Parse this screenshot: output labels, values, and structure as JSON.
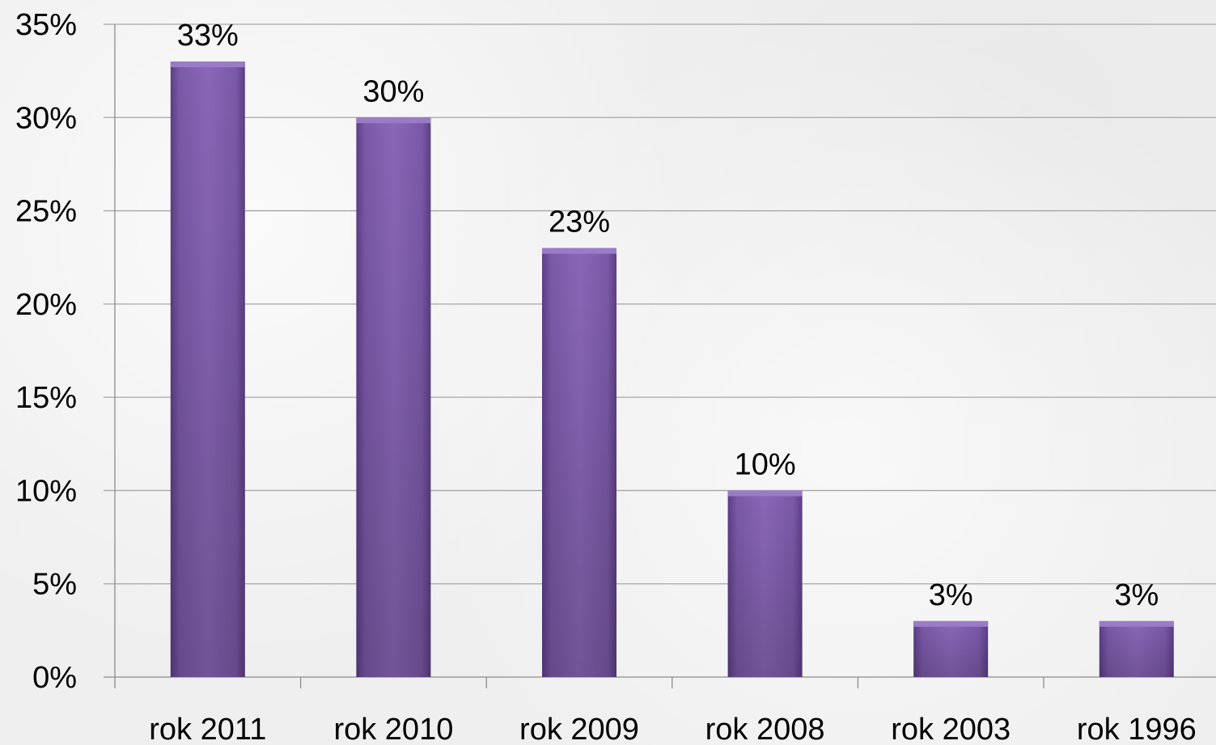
{
  "chart_data": {
    "type": "bar",
    "title": "",
    "xlabel": "",
    "ylabel": "",
    "categories": [
      "rok 2011",
      "rok 2010",
      "rok 2009",
      "rok 2008",
      "rok 2003",
      "rok 1996"
    ],
    "values": [
      33,
      30,
      23,
      10,
      3,
      3
    ],
    "data_labels": [
      "33%",
      "30%",
      "23%",
      "10%",
      "3%",
      "3%"
    ],
    "ylim": [
      0,
      35
    ],
    "yticks": [
      0,
      5,
      10,
      15,
      20,
      25,
      30,
      35
    ],
    "ytick_labels": [
      "0%",
      "5%",
      "10%",
      "15%",
      "20%",
      "25%",
      "30%",
      "35%"
    ],
    "grid": true,
    "legend": "none",
    "colors": {
      "bar": "#7b59a8",
      "bar_light": "#8a67b8",
      "bar_dark": "#5c3f86",
      "grid": "#a6a6a6",
      "axis": "#8c8c8c"
    }
  }
}
